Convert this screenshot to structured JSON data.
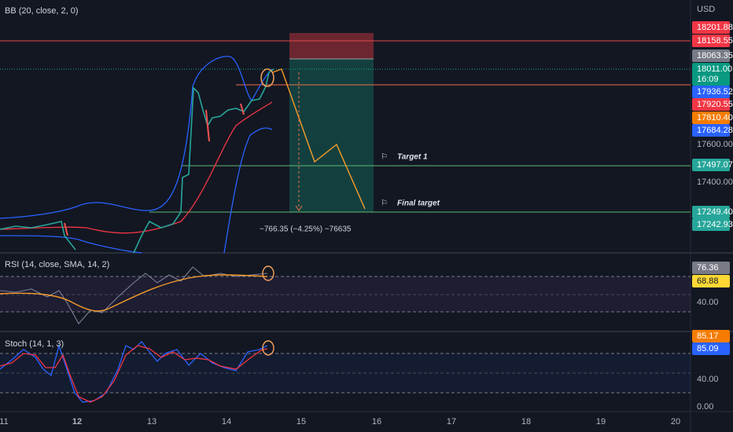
{
  "panes": {
    "main": {
      "label": "BB (20, close, 2, 0)",
      "currency": "USD"
    },
    "rsi": {
      "label": "RSI (14, close, SMA, 14, 2)"
    },
    "stoch": {
      "label": "Stoch (14, 1, 3)"
    }
  },
  "price_labels": [
    "18201.88",
    "18158.55",
    "18063.35",
    "18011.00",
    "16:09",
    "17936.52",
    "17920.55",
    "17810.40",
    "17684.28",
    "17600.00",
    "17497.07",
    "17400.00",
    "17249.40",
    "17242.93"
  ],
  "rsi_labels": [
    "76.36",
    "68.88",
    "40.00"
  ],
  "stoch_labels": [
    "85.17",
    "85.09",
    "40.00",
    "0.00"
  ],
  "time_labels": [
    "11",
    "12",
    "13",
    "14",
    "15",
    "16",
    "17",
    "18",
    "19",
    "20"
  ],
  "annotations": {
    "target1": "Target 1",
    "final_target": "Final target",
    "measure": "−766.35 (−4.25%) −76635"
  }
}
